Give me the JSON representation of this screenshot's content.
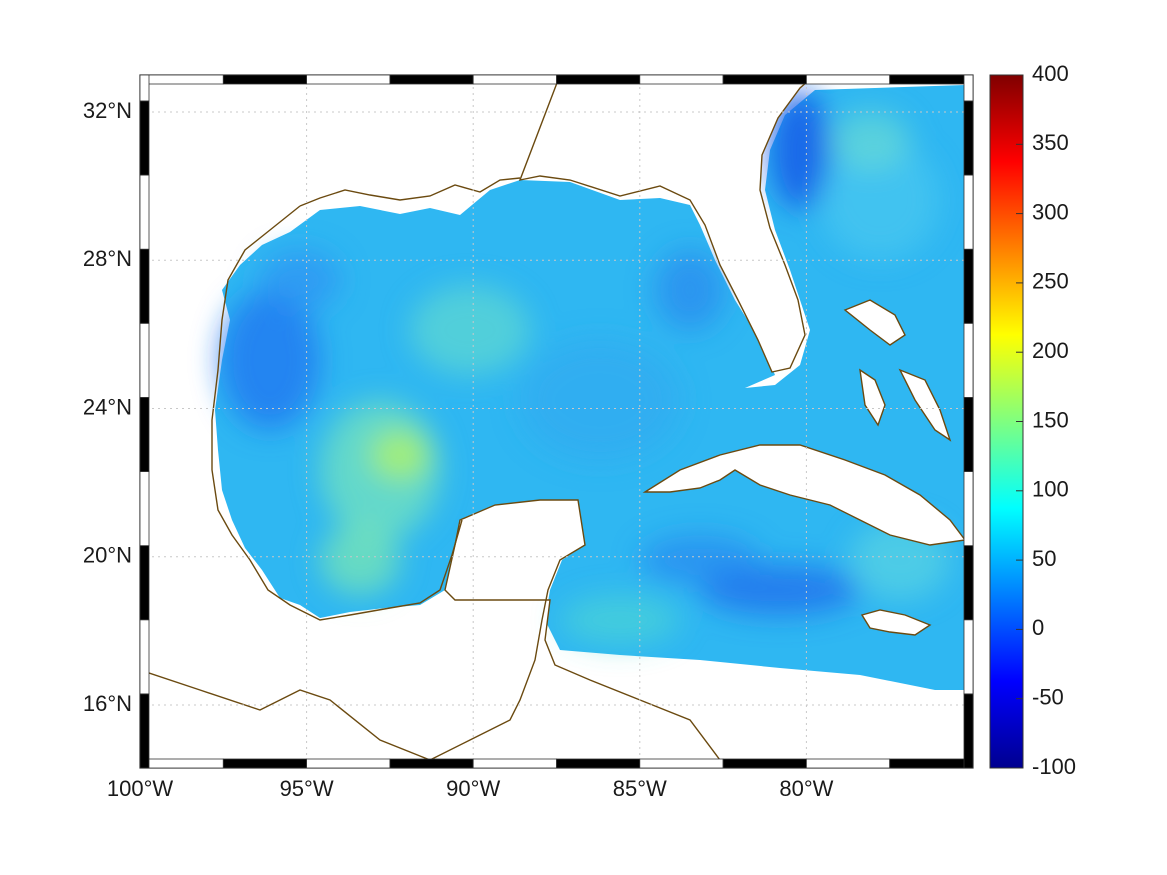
{
  "map": {
    "lon_range": [
      -100,
      -75
    ],
    "lat_range": [
      14.3,
      33
    ],
    "grid": "dotted",
    "frame": "black-white-checkered",
    "coastline_color": "#6b4a10",
    "lon_ticks": [
      {
        "value": -100,
        "label": "100°W"
      },
      {
        "value": -95,
        "label": "95°W"
      },
      {
        "value": -90,
        "label": "90°W"
      },
      {
        "value": -85,
        "label": "85°W"
      },
      {
        "value": -80,
        "label": "80°W"
      }
    ],
    "lat_ticks": [
      {
        "value": 16,
        "label": "16°N"
      },
      {
        "value": 20,
        "label": "20°N"
      },
      {
        "value": 24,
        "label": "24°N"
      },
      {
        "value": 28,
        "label": "28°N"
      },
      {
        "value": 32,
        "label": "32°N"
      }
    ]
  },
  "colorbar": {
    "range": [
      -100,
      400
    ],
    "colormap": "jet",
    "ticks": [
      {
        "value": 400,
        "label": "400"
      },
      {
        "value": 350,
        "label": "350"
      },
      {
        "value": 300,
        "label": "300"
      },
      {
        "value": 250,
        "label": "250"
      },
      {
        "value": 200,
        "label": "200"
      },
      {
        "value": 150,
        "label": "150"
      },
      {
        "value": 100,
        "label": "100"
      },
      {
        "value": 50,
        "label": "50"
      },
      {
        "value": 0,
        "label": "0"
      },
      {
        "value": -50,
        "label": "-50"
      },
      {
        "value": -100,
        "label": "-100"
      }
    ]
  }
}
